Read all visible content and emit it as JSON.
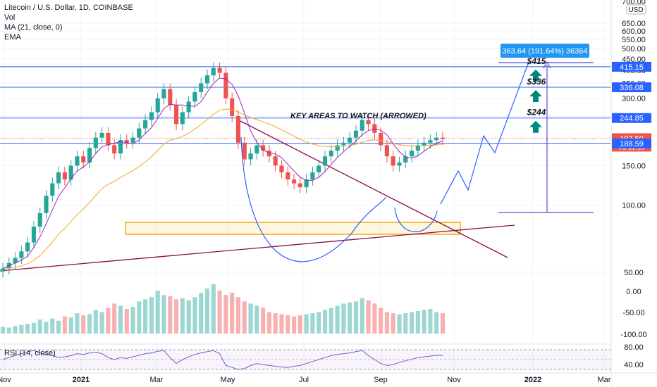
{
  "legend": {
    "symbol": "Litecoin / U.S. Dollar, 1D, COINBASE",
    "vol": "Vol",
    "ma": "MA (21, close, 0)",
    "ema": "EMA",
    "rsi": "RSI (14, close)"
  },
  "currency": "USD",
  "top_partial_label": "700.00",
  "measure_label": "363.64 (191.64%) 36364",
  "key_areas_title": "KEY AREAS TO WATCH (ARROWED)",
  "colors": {
    "up": "#26a69a",
    "down": "#ef5350",
    "level_line": "#2962ff",
    "trend_line": "#880e4f",
    "ma": "#9c27b0",
    "ema": "#f5a623",
    "arrow_teal": "#00897b",
    "zone": "#f5c518",
    "measure": "#5b4fcf",
    "measure_box": "#2196f3",
    "current_price": "#ef5350"
  },
  "chart_data": {
    "type": "candlestick",
    "title": "Litecoin / U.S. Dollar, 1D, COINBASE",
    "price_axis": {
      "ticks": [
        650,
        600,
        550,
        500,
        450,
        400,
        350,
        300,
        250,
        200,
        150,
        100,
        50
      ],
      "labels": [
        "650.00",
        "600.00",
        "550.00",
        "500.00",
        "450.00",
        "400.00",
        "350.00",
        "300.00",
        "250.00",
        "200.00",
        "150.00",
        "100.00",
        "50.00"
      ]
    },
    "volume_axis": {
      "ticks": [
        0,
        -50,
        -100
      ],
      "labels": [
        "0.00",
        "-50.00",
        "-100.00"
      ]
    },
    "rsi_axis": {
      "ticks": [
        80,
        40
      ],
      "labels": [
        "80.00",
        "40.00"
      ]
    },
    "time_axis": [
      "Nov",
      "2021",
      "Mar",
      "May",
      "Jul",
      "Sep",
      "Nov",
      "2022",
      "Mar"
    ],
    "price_labels": [
      {
        "value": "415.15",
        "color": "#2962ff"
      },
      {
        "value": "336.08",
        "color": "#2962ff"
      },
      {
        "value": "244.85",
        "color": "#2962ff"
      },
      {
        "value": "197.50",
        "sub": "01:11:18",
        "color": "#ef5350"
      },
      {
        "value": "188.59",
        "color": "#2962ff"
      }
    ],
    "key_levels": [
      {
        "label": "$415",
        "price": 415.15
      },
      {
        "label": "$336",
        "price": 336.08
      },
      {
        "label": "$244",
        "price": 244.85
      }
    ],
    "series_close": [
      52,
      55,
      58,
      62,
      68,
      80,
      92,
      110,
      125,
      140,
      130,
      150,
      165,
      155,
      180,
      200,
      210,
      185,
      170,
      195,
      190,
      200,
      220,
      240,
      260,
      300,
      330,
      280,
      230,
      260,
      290,
      320,
      350,
      380,
      410,
      390,
      300,
      250,
      190,
      160,
      170,
      185,
      175,
      165,
      150,
      140,
      130,
      125,
      120,
      130,
      140,
      150,
      165,
      175,
      185,
      190,
      200,
      215,
      240,
      230,
      210,
      185,
      165,
      150,
      155,
      165,
      175,
      185,
      190,
      195,
      200,
      197.5
    ],
    "volume": [
      30,
      28,
      35,
      40,
      45,
      50,
      65,
      55,
      70,
      60,
      80,
      75,
      95,
      85,
      90,
      110,
      100,
      120,
      140,
      130,
      115,
      125,
      150,
      160,
      170,
      200,
      180,
      175,
      160,
      165,
      155,
      170,
      190,
      210,
      230,
      200,
      180,
      190,
      170,
      150,
      140,
      130,
      120,
      100,
      95,
      90,
      85,
      80,
      85,
      90,
      95,
      100,
      110,
      120,
      130,
      140,
      145,
      150,
      165,
      155,
      140,
      120,
      100,
      95,
      90,
      95,
      100,
      105,
      110,
      115,
      100,
      95
    ],
    "rsi": [
      55,
      60,
      65,
      70,
      75,
      78,
      72,
      68,
      65,
      60,
      62,
      65,
      70,
      68,
      72,
      74,
      70,
      60,
      55,
      60,
      58,
      62,
      66,
      70,
      72,
      76,
      78,
      60,
      45,
      55,
      62,
      68,
      72,
      75,
      78,
      70,
      40,
      35,
      30,
      32,
      40,
      45,
      42,
      40,
      38,
      36,
      35,
      38,
      40,
      45,
      50,
      55,
      60,
      65,
      68,
      70,
      72,
      75,
      78,
      65,
      55,
      45,
      40,
      42,
      48,
      52,
      56,
      60,
      62,
      64,
      66,
      65
    ]
  }
}
